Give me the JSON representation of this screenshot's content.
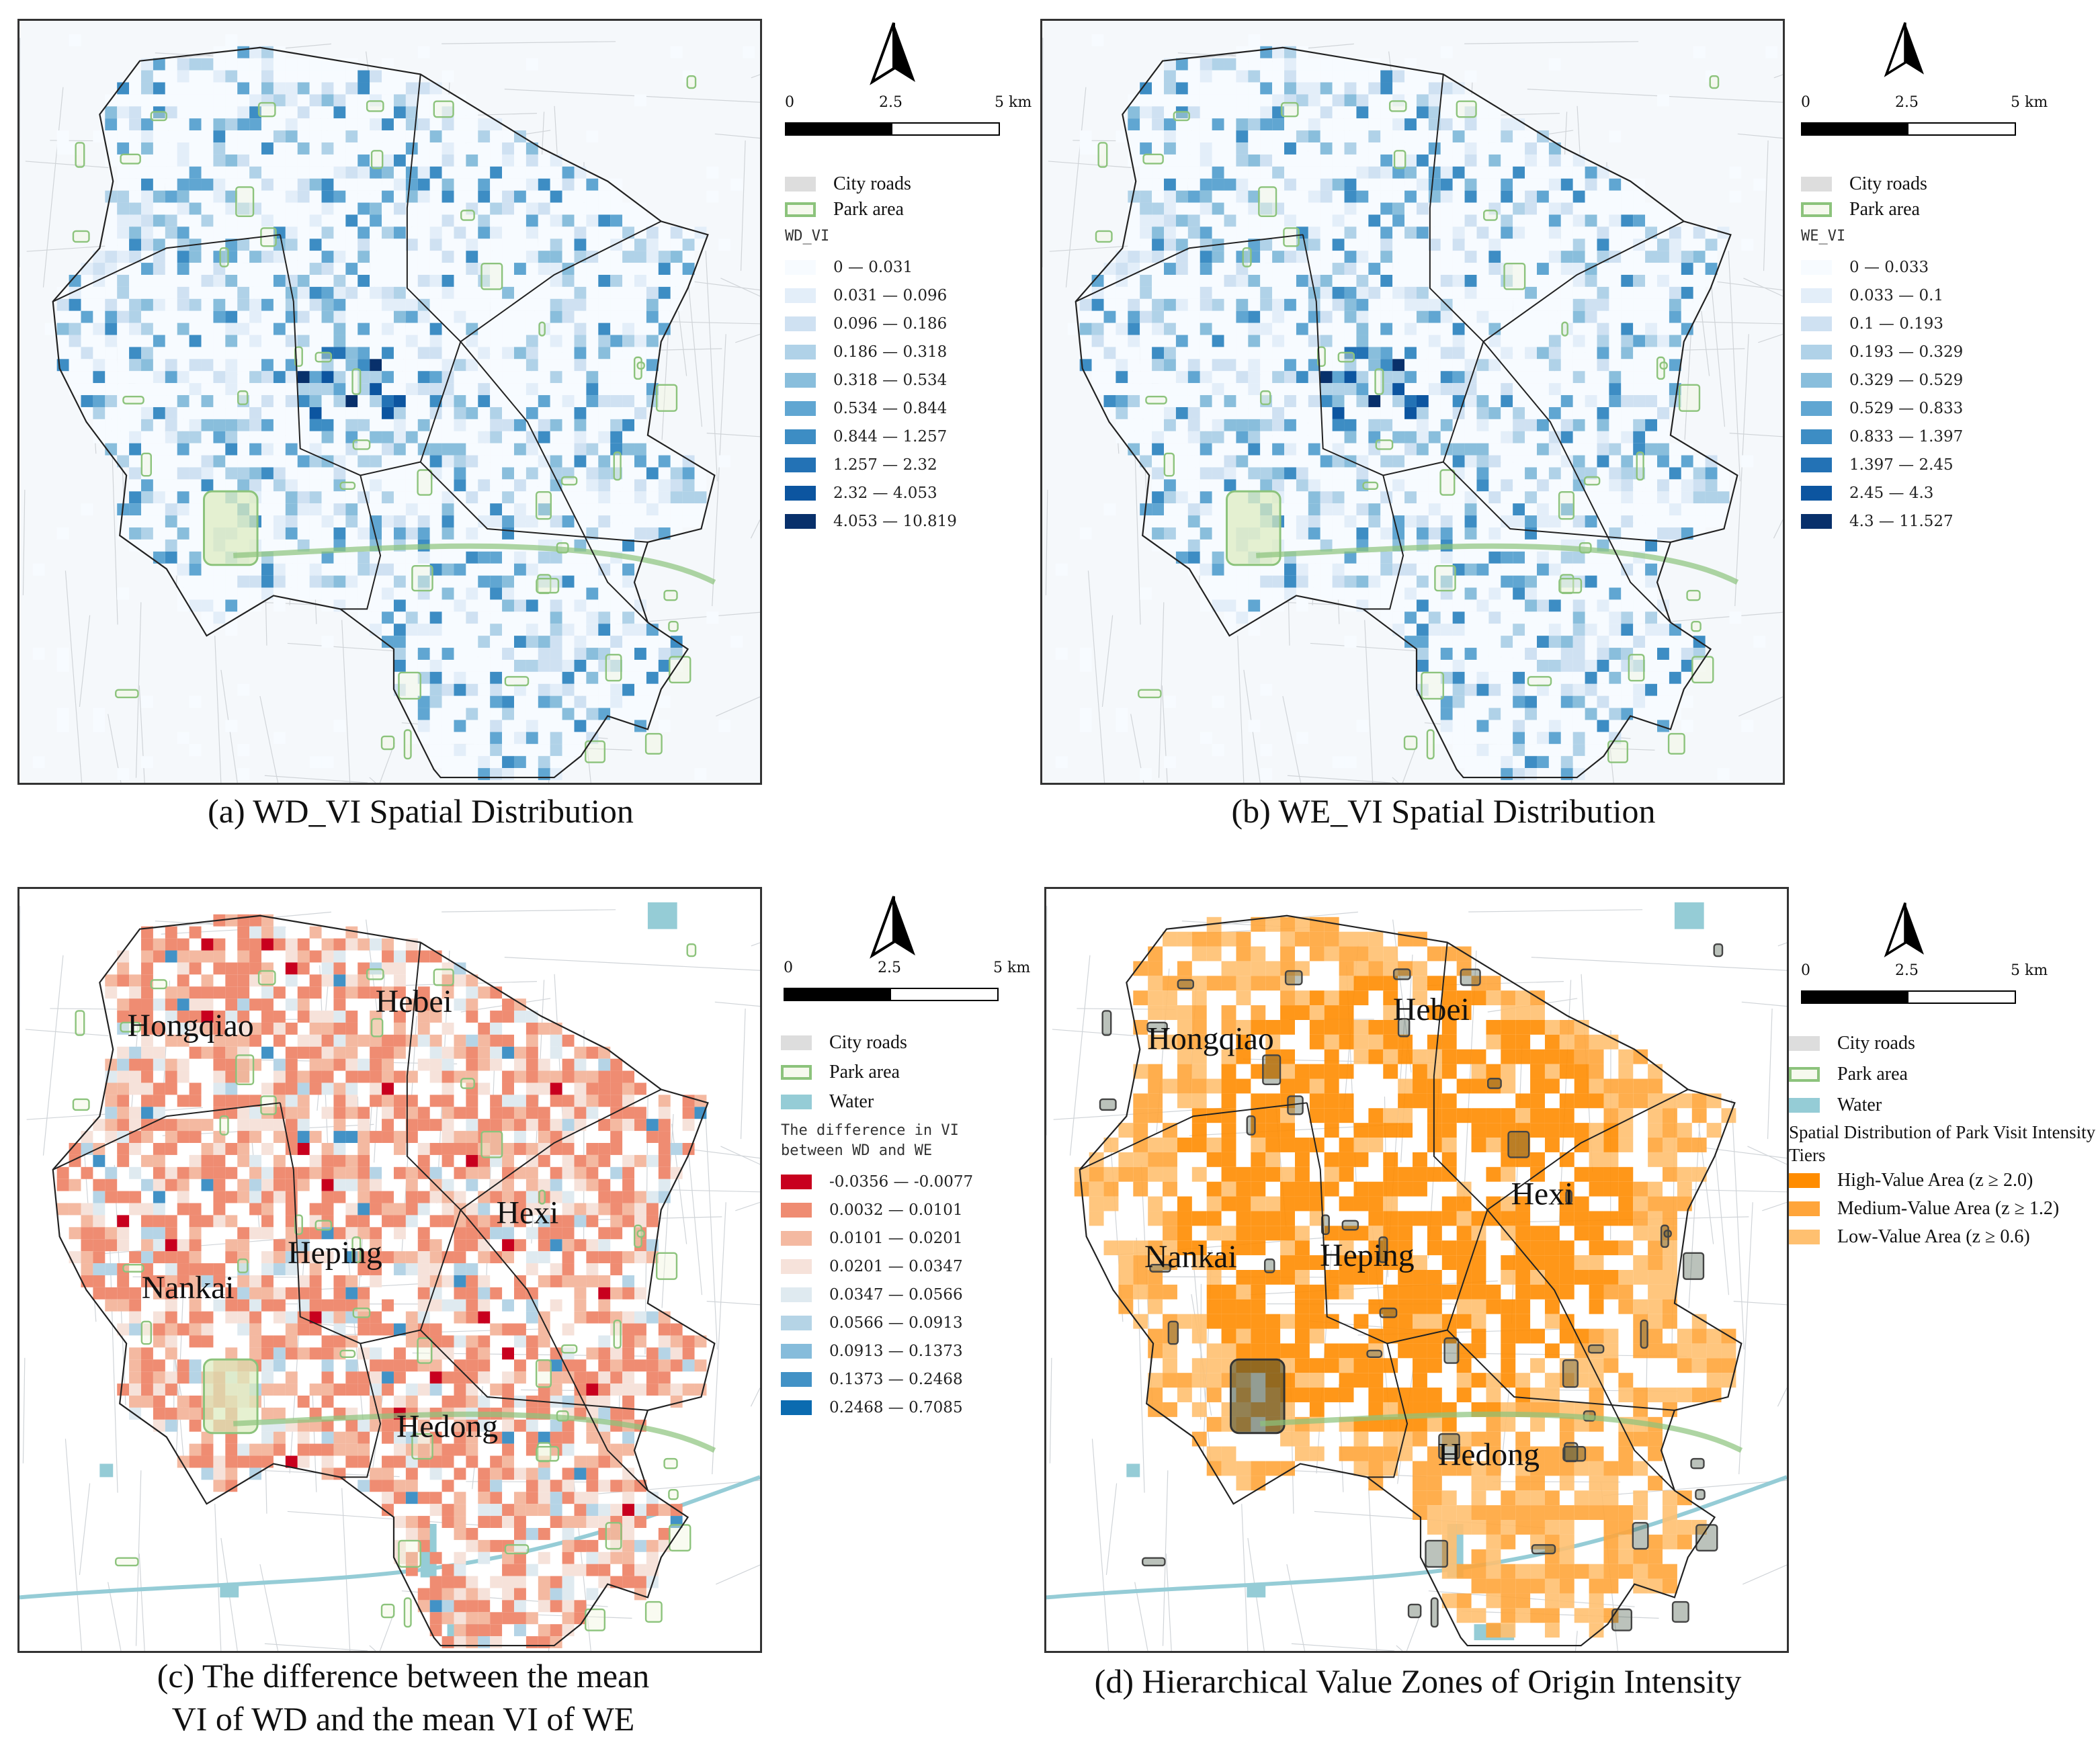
{
  "common": {
    "scale_ticks": [
      "0",
      "2.5",
      "5 km"
    ],
    "city_roads": "City roads",
    "park_area": "Park area",
    "water": "Water"
  },
  "colors": {
    "park": "#8cc37c",
    "water": "#95ccd6",
    "boundary": "#222222",
    "road": "#d0d4d8"
  },
  "panels": {
    "a": {
      "caption": "(a)  WD_VI Spatial Distribution",
      "legend_title": "WD_VI",
      "classes": [
        {
          "label": "0 — 0.031",
          "color": "#f7fbff"
        },
        {
          "label": "0.031 — 0.096",
          "color": "#e3eef9"
        },
        {
          "label": "0.096 — 0.186",
          "color": "#cfe1f2"
        },
        {
          "label": "0.186 — 0.318",
          "color": "#b0d2e8"
        },
        {
          "label": "0.318 — 0.534",
          "color": "#89bedc"
        },
        {
          "label": "0.534 — 0.844",
          "color": "#60a6d2"
        },
        {
          "label": "0.844 — 1.257",
          "color": "#3d8dc4"
        },
        {
          "label": "1.257 — 2.32",
          "color": "#2372b5"
        },
        {
          "label": "2.32 — 4.053",
          "color": "#0c55a0"
        },
        {
          "label": "4.053 — 10.819",
          "color": "#08306b"
        }
      ]
    },
    "b": {
      "caption": "(b)  WE_VI Spatial Distribution",
      "legend_title": "WE_VI",
      "classes": [
        {
          "label": "0 — 0.033",
          "color": "#f7fbff"
        },
        {
          "label": "0.033 — 0.1",
          "color": "#e3eef9"
        },
        {
          "label": "0.1 — 0.193",
          "color": "#cfe1f2"
        },
        {
          "label": "0.193 — 0.329",
          "color": "#b0d2e8"
        },
        {
          "label": "0.329 — 0.529",
          "color": "#89bedc"
        },
        {
          "label": "0.529 — 0.833",
          "color": "#60a6d2"
        },
        {
          "label": "0.833 — 1.397",
          "color": "#3d8dc4"
        },
        {
          "label": "1.397 — 2.45",
          "color": "#2372b5"
        },
        {
          "label": "2.45 — 4.3",
          "color": "#0c55a0"
        },
        {
          "label": "4.3 — 11.527",
          "color": "#08306b"
        }
      ]
    },
    "c": {
      "caption_line1": "(c)  The difference between the mean",
      "caption_line2": "VI of WD and the mean VI of WE",
      "legend_title": "The difference in VI between WD and WE",
      "classes": [
        {
          "label": "-0.0356 — -0.0077",
          "color": "#c8001e"
        },
        {
          "label": "0.0032 — 0.0101",
          "color": "#ef8c72"
        },
        {
          "label": "0.0101 — 0.0201",
          "color": "#f4b9a1"
        },
        {
          "label": "0.0201 — 0.0347",
          "color": "#f6e2da"
        },
        {
          "label": "0.0347 — 0.0566",
          "color": "#dfeaf0"
        },
        {
          "label": "0.0566 — 0.0913",
          "color": "#b5d4e6"
        },
        {
          "label": "0.0913 — 0.1373",
          "color": "#86bcdb"
        },
        {
          "label": "0.1373 — 0.2468",
          "color": "#4292c6"
        },
        {
          "label": "0.2468 — 0.7085",
          "color": "#0b6bb0"
        }
      ],
      "districts": [
        "Hongqiao",
        "Hebei",
        "Hexi",
        "Heping",
        "Nankai",
        "Hedong"
      ]
    },
    "d": {
      "caption": "(d)  Hierarchical Value Zones of Origin Intensity",
      "legend_title": "Spatial Distribution of Park Visit Intensity Tiers",
      "classes": [
        {
          "label": "High-Value Area (z ≥ 2.0)",
          "color": "#ff8c00"
        },
        {
          "label": "Medium-Value Area (z ≥ 1.2)",
          "color": "#ffa53a"
        },
        {
          "label": "Low-Value Area (z ≥ 0.6)",
          "color": "#ffc070"
        }
      ],
      "districts": [
        "Hongqiao",
        "Hebei",
        "Hexi",
        "Nankai",
        "Heping",
        "Hedong"
      ]
    }
  }
}
